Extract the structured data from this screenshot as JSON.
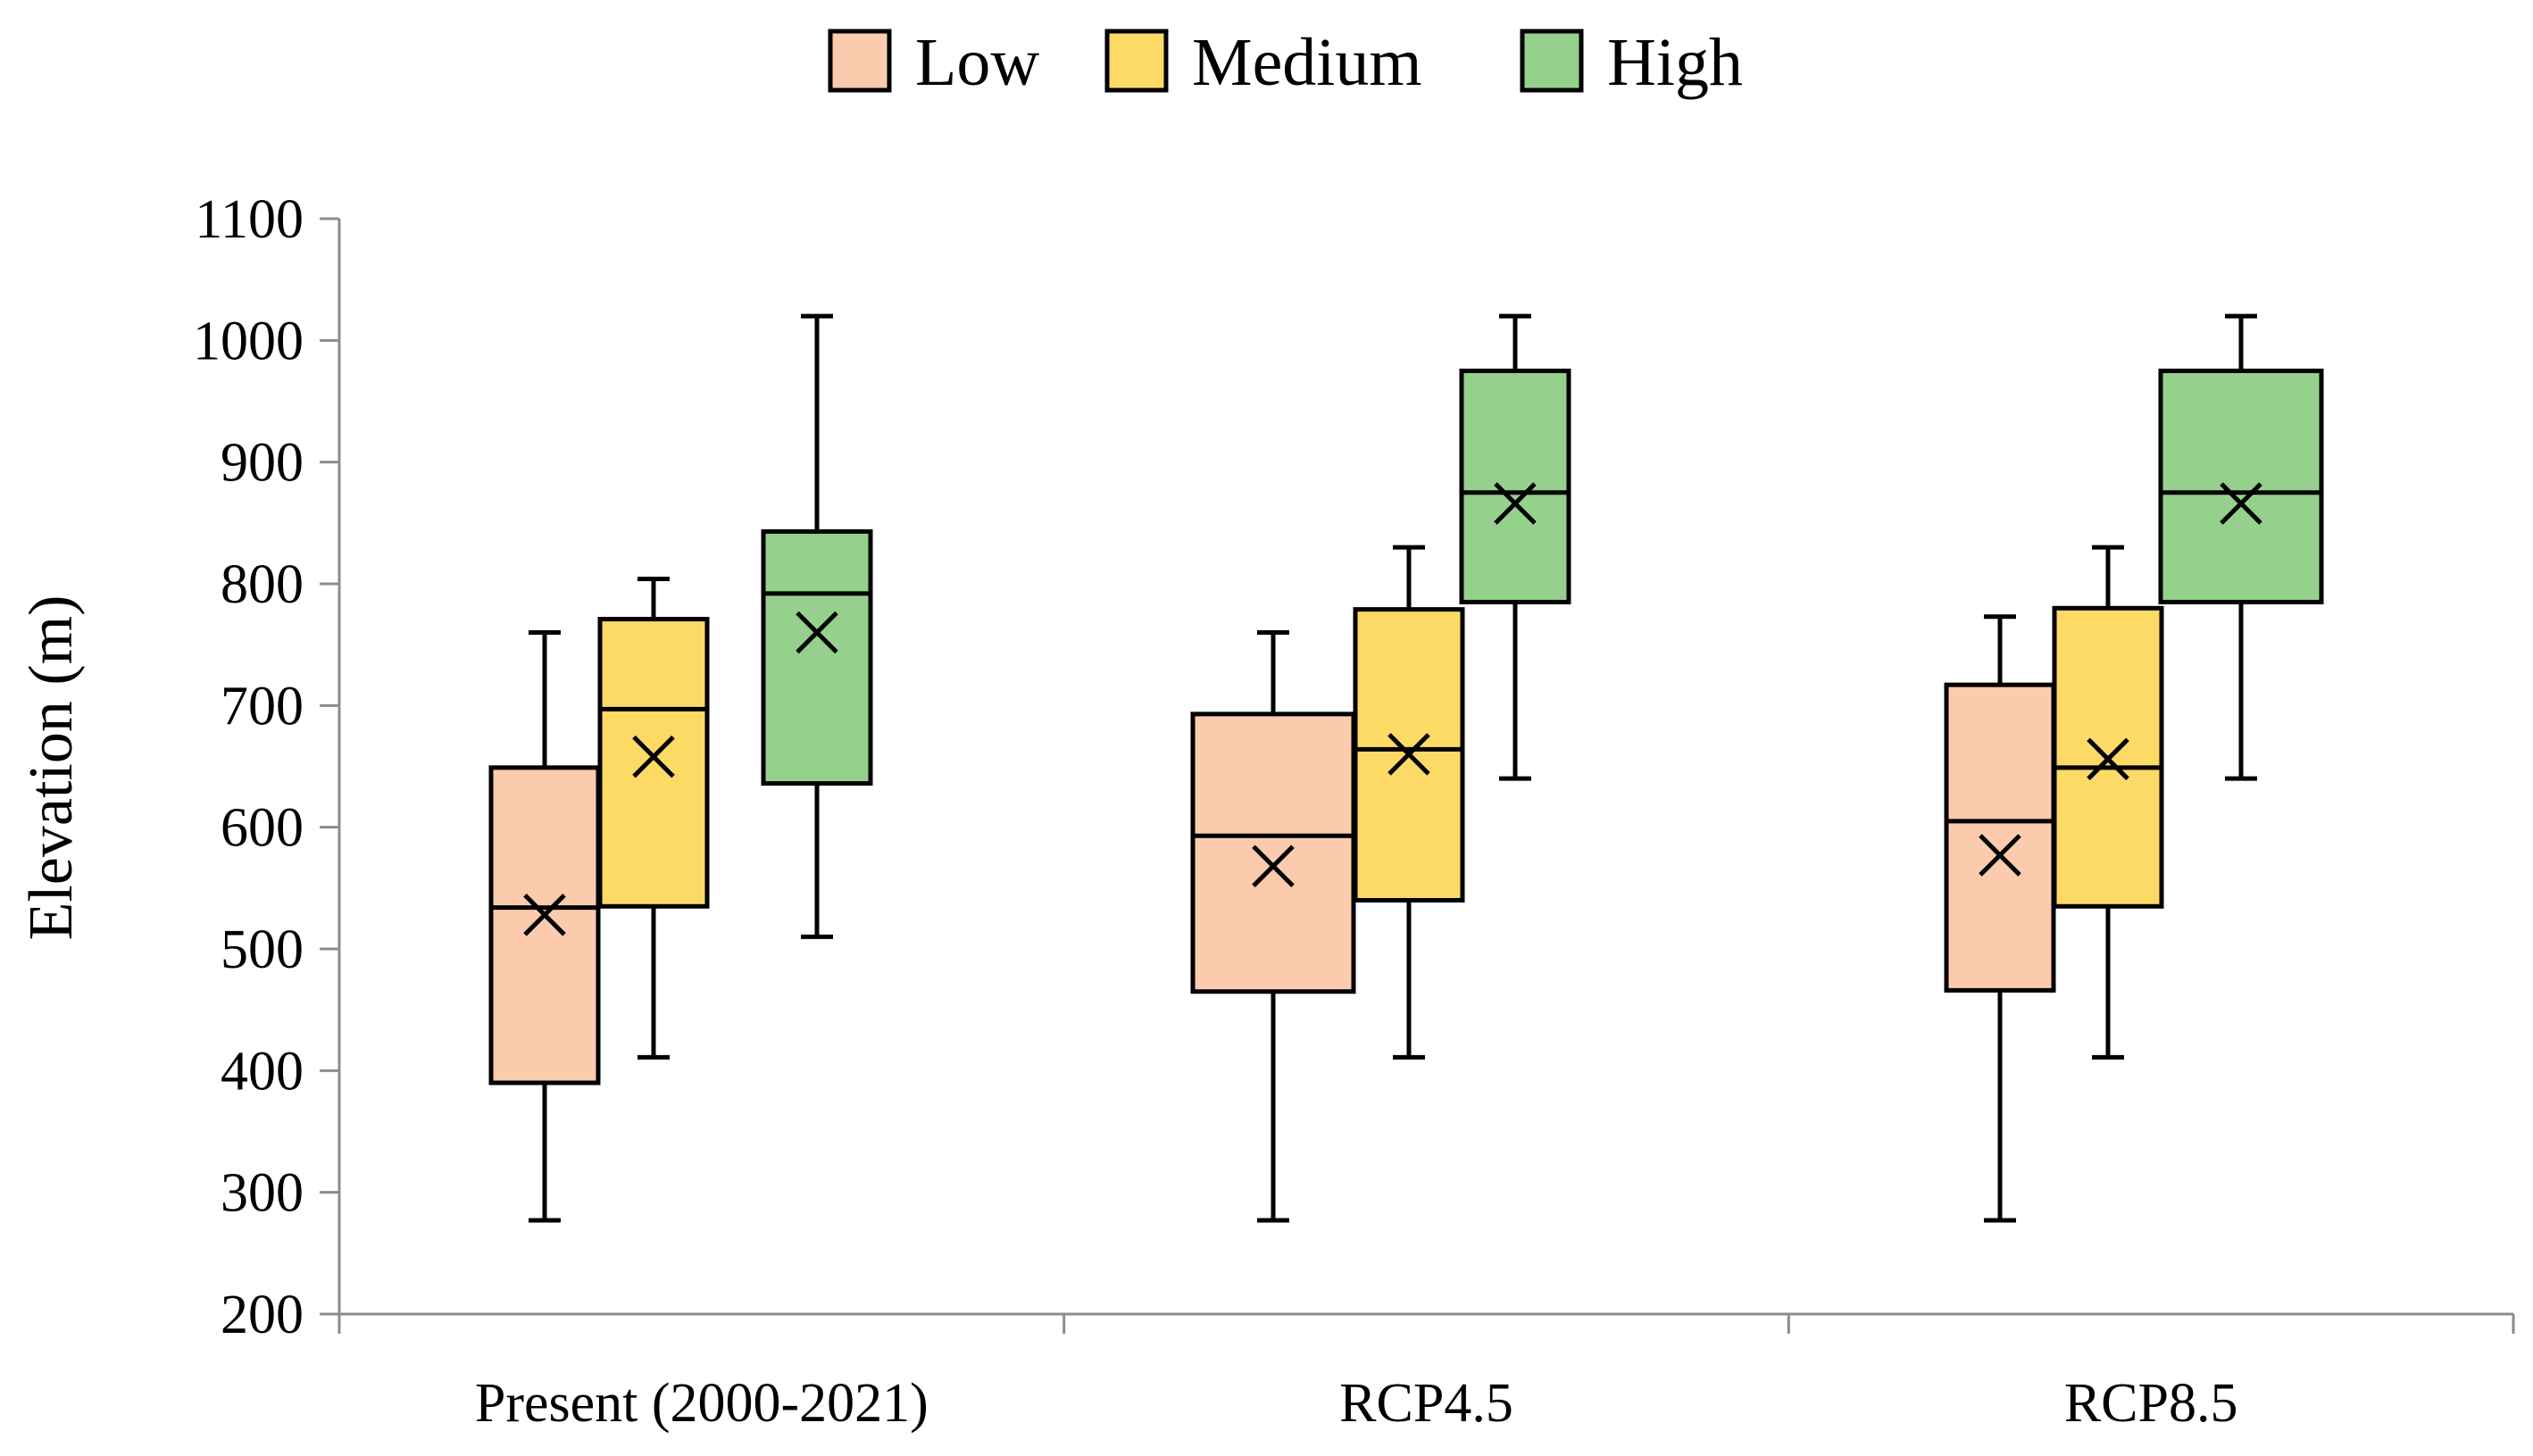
{
  "chart_data": {
    "type": "box",
    "ylabel": "Elevation (m)",
    "xlabel": "",
    "ylim": [
      200,
      1100
    ],
    "yticks": [
      200,
      300,
      400,
      500,
      600,
      700,
      800,
      900,
      1000,
      1100
    ],
    "grid": false,
    "legend_position": "top-center",
    "categories": [
      "Present (2000-2021)",
      "RCP4.5",
      "RCP8.5"
    ],
    "series": [
      {
        "name": "Low",
        "color": "#FCCBAE",
        "boxes": [
          {
            "min": 277,
            "q1": 390,
            "median": 534,
            "q3": 649,
            "max": 760,
            "mean": 528
          },
          {
            "min": 277,
            "q1": 465,
            "median": 593,
            "q3": 693,
            "max": 760,
            "mean": 568
          },
          {
            "min": 277,
            "q1": 466,
            "median": 605,
            "q3": 717,
            "max": 773,
            "mean": 577
          }
        ]
      },
      {
        "name": "Medium",
        "color": "#FDD966",
        "boxes": [
          {
            "min": 411,
            "q1": 535,
            "median": 697,
            "q3": 771,
            "max": 804,
            "mean": 658
          },
          {
            "min": 411,
            "q1": 540,
            "median": 664,
            "q3": 779,
            "max": 830,
            "mean": 660
          },
          {
            "min": 411,
            "q1": 535,
            "median": 649,
            "q3": 780,
            "max": 830,
            "mean": 656
          }
        ]
      },
      {
        "name": "High",
        "color": "#95D18C",
        "boxes": [
          {
            "min": 510,
            "q1": 636,
            "median": 792,
            "q3": 843,
            "max": 1020,
            "mean": 760
          },
          {
            "min": 640,
            "q1": 785,
            "median": 875,
            "q3": 975,
            "max": 1020,
            "mean": 866
          },
          {
            "min": 640,
            "q1": 785,
            "median": 875,
            "q3": 975,
            "max": 1020,
            "mean": 866
          }
        ]
      }
    ]
  }
}
